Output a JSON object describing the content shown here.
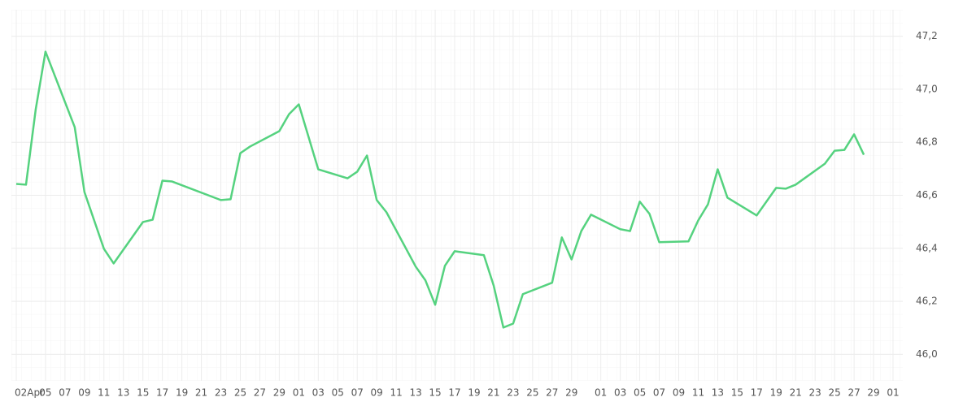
{
  "chart_data": {
    "type": "line",
    "x": [
      0,
      1,
      2,
      3,
      6,
      7,
      9,
      10,
      13,
      14,
      15,
      16,
      21,
      22,
      23,
      24,
      27,
      28,
      29,
      31,
      34,
      35,
      36,
      37,
      38,
      41,
      42,
      43,
      44,
      45,
      48,
      49,
      50,
      51,
      52,
      55,
      56,
      57,
      58,
      59,
      62,
      63,
      64,
      65,
      66,
      69,
      70,
      71,
      72,
      73,
      76,
      78,
      79,
      80,
      83,
      84,
      85,
      86,
      87
    ],
    "series": [
      {
        "color": "#55d27f",
        "values": [
          46.643,
          46.64,
          46.925,
          47.142,
          46.857,
          46.612,
          46.398,
          46.343,
          46.499,
          46.508,
          46.655,
          46.652,
          46.582,
          46.585,
          46.759,
          46.784,
          46.842,
          46.906,
          46.943,
          46.698,
          46.664,
          46.689,
          46.75,
          46.582,
          46.536,
          46.331,
          46.279,
          46.187,
          46.334,
          46.389,
          46.374,
          46.26,
          46.101,
          46.116,
          46.227,
          46.27,
          46.441,
          46.358,
          46.465,
          46.527,
          46.472,
          46.465,
          46.576,
          46.53,
          46.423,
          46.426,
          46.505,
          46.566,
          46.698,
          46.591,
          46.524,
          46.628,
          46.625,
          46.64,
          46.719,
          46.768,
          46.771,
          46.83,
          46.753
        ]
      }
    ],
    "xlim": [
      -0.5,
      91
    ],
    "xticks": [
      {
        "value": 0,
        "label": "02Apr"
      },
      {
        "value": 3,
        "label": "05"
      },
      {
        "value": 5,
        "label": "07"
      },
      {
        "value": 7,
        "label": "09"
      },
      {
        "value": 9,
        "label": "11"
      },
      {
        "value": 11,
        "label": "13"
      },
      {
        "value": 13,
        "label": "15"
      },
      {
        "value": 15,
        "label": "17"
      },
      {
        "value": 17,
        "label": "19"
      },
      {
        "value": 19,
        "label": "21"
      },
      {
        "value": 21,
        "label": "23"
      },
      {
        "value": 23,
        "label": "25"
      },
      {
        "value": 25,
        "label": "27"
      },
      {
        "value": 27,
        "label": "29"
      },
      {
        "value": 29,
        "label": "01"
      },
      {
        "value": 31,
        "label": "03"
      },
      {
        "value": 33,
        "label": "05"
      },
      {
        "value": 35,
        "label": "07"
      },
      {
        "value": 37,
        "label": "09"
      },
      {
        "value": 39,
        "label": "11"
      },
      {
        "value": 41,
        "label": "13"
      },
      {
        "value": 43,
        "label": "15"
      },
      {
        "value": 45,
        "label": "17"
      },
      {
        "value": 47,
        "label": "19"
      },
      {
        "value": 49,
        "label": "21"
      },
      {
        "value": 51,
        "label": "23"
      },
      {
        "value": 53,
        "label": "25"
      },
      {
        "value": 55,
        "label": "27"
      },
      {
        "value": 57,
        "label": "29"
      },
      {
        "value": 60,
        "label": "01"
      },
      {
        "value": 62,
        "label": "03"
      },
      {
        "value": 64,
        "label": "05"
      },
      {
        "value": 66,
        "label": "07"
      },
      {
        "value": 68,
        "label": "09"
      },
      {
        "value": 70,
        "label": "11"
      },
      {
        "value": 72,
        "label": "13"
      },
      {
        "value": 74,
        "label": "15"
      },
      {
        "value": 76,
        "label": "17"
      },
      {
        "value": 78,
        "label": "19"
      },
      {
        "value": 80,
        "label": "21"
      },
      {
        "value": 82,
        "label": "23"
      },
      {
        "value": 84,
        "label": "25"
      },
      {
        "value": 86,
        "label": "27"
      },
      {
        "value": 88,
        "label": "29"
      },
      {
        "value": 90,
        "label": "01"
      }
    ],
    "ylim": [
      45.9,
      47.3
    ],
    "yticks": [
      {
        "value": 46.0,
        "label": "46,0"
      },
      {
        "value": 46.2,
        "label": "46,2"
      },
      {
        "value": 46.4,
        "label": "46,4"
      },
      {
        "value": 46.6,
        "label": "46,6"
      },
      {
        "value": 46.8,
        "label": "46,8"
      },
      {
        "value": 47.0,
        "label": "47,0"
      },
      {
        "value": 47.2,
        "label": "47,2"
      }
    ],
    "grid": true
  }
}
